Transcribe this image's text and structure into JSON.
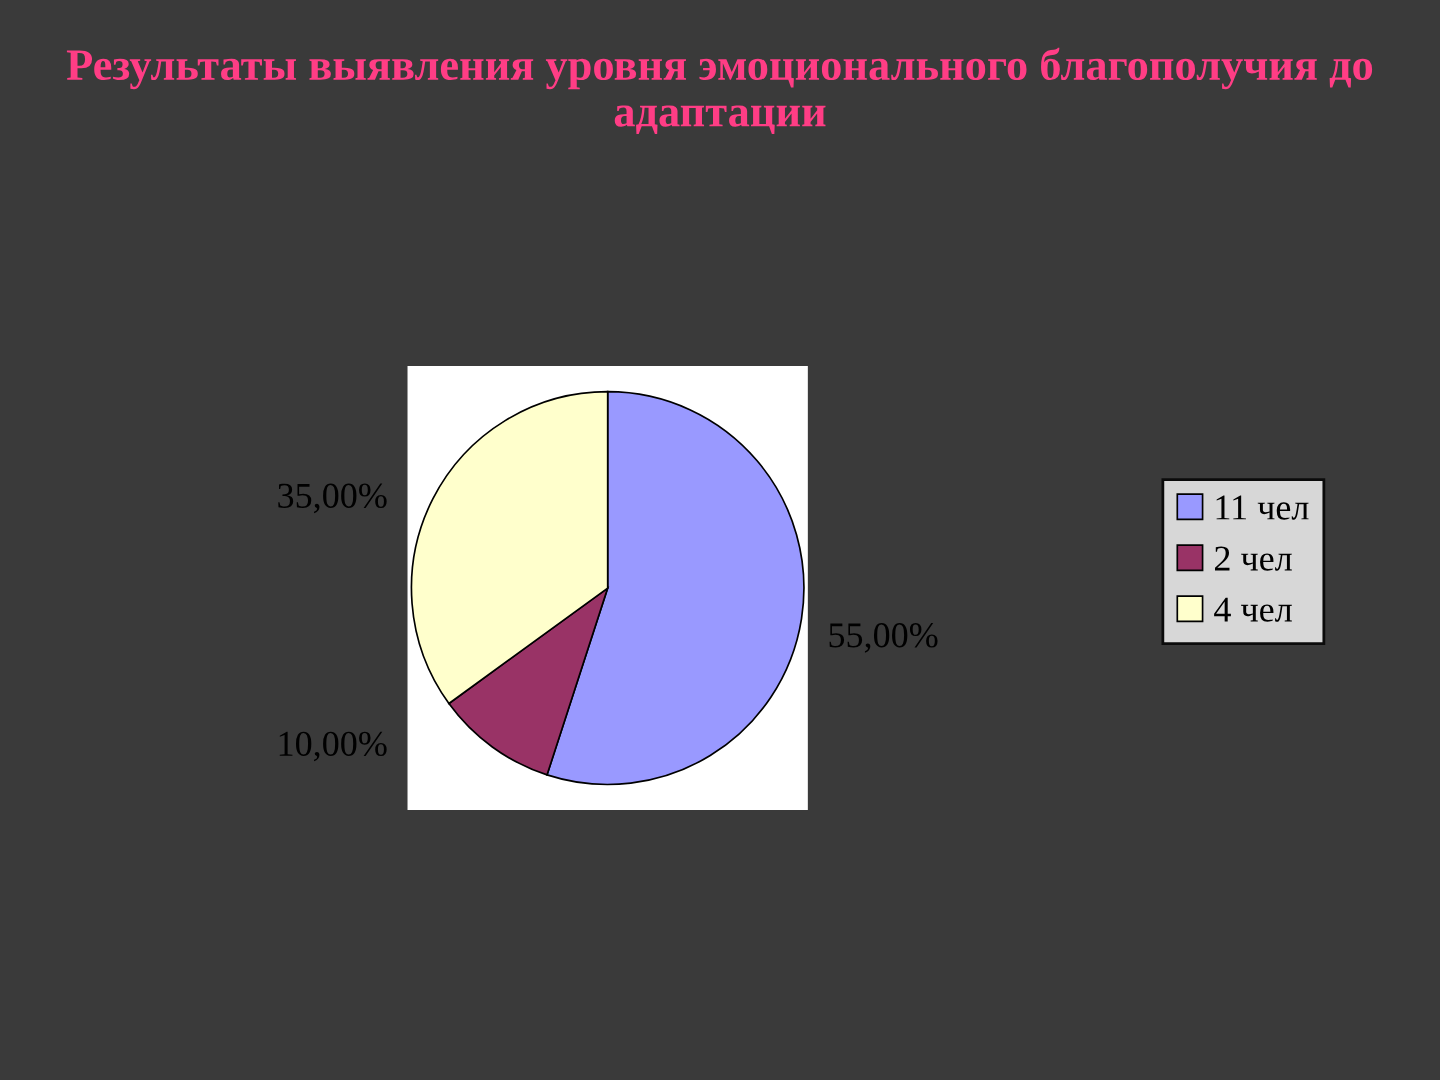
{
  "chart_data": {
    "type": "pie",
    "title": "Результаты выявления уровня эмоционального благополучия до адаптации",
    "categories": [
      "11 чел",
      "2 чел",
      "4 чел"
    ],
    "values": [
      55,
      10,
      35
    ],
    "colors": [
      "#9999ff",
      "#993366",
      "#ffffcc"
    ],
    "value_labels": [
      "55,00%",
      "10,00%",
      "35,00%"
    ],
    "legend": "right"
  }
}
